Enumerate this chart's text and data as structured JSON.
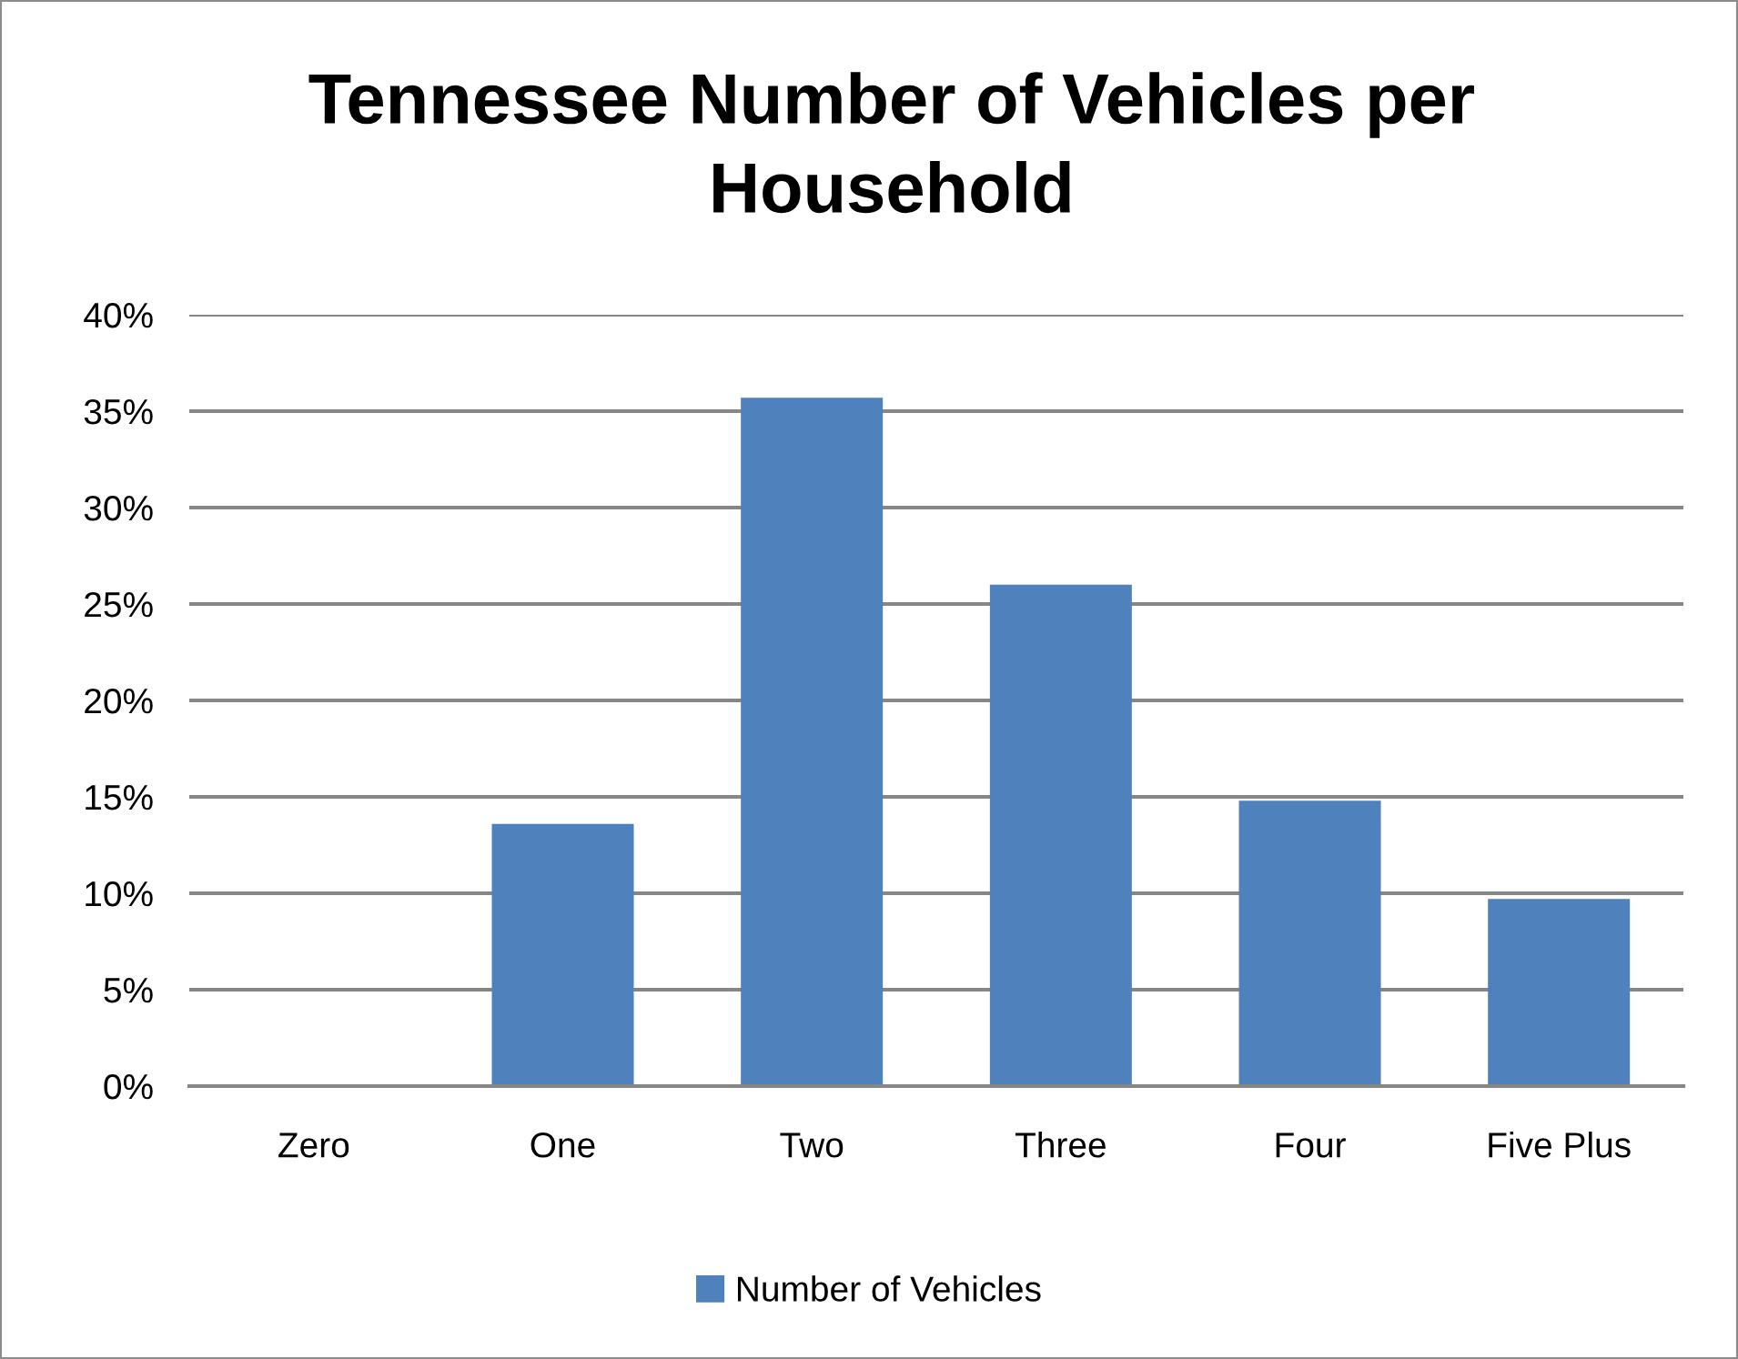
{
  "chart_data": {
    "type": "bar",
    "title": "Tennessee Number of Vehicles per Household",
    "categories": [
      "Zero",
      "One",
      "Two",
      "Three",
      "Four",
      "Five Plus"
    ],
    "series": [
      {
        "name": "Number of Vehicles",
        "color": "#4f81bd",
        "values": [
          0,
          13.6,
          35.7,
          26.0,
          14.8,
          9.7
        ]
      }
    ],
    "ylim": [
      0,
      40
    ],
    "yticks": [
      {
        "value": 0,
        "label": "0%"
      },
      {
        "value": 5,
        "label": "5%"
      },
      {
        "value": 10,
        "label": "10%"
      },
      {
        "value": 15,
        "label": "15%"
      },
      {
        "value": 20,
        "label": "20%"
      },
      {
        "value": 25,
        "label": "25%"
      },
      {
        "value": 30,
        "label": "30%"
      },
      {
        "value": 35,
        "label": "35%"
      },
      {
        "value": 40,
        "label": "40%"
      }
    ],
    "grid": "y",
    "legend": "bottom"
  }
}
